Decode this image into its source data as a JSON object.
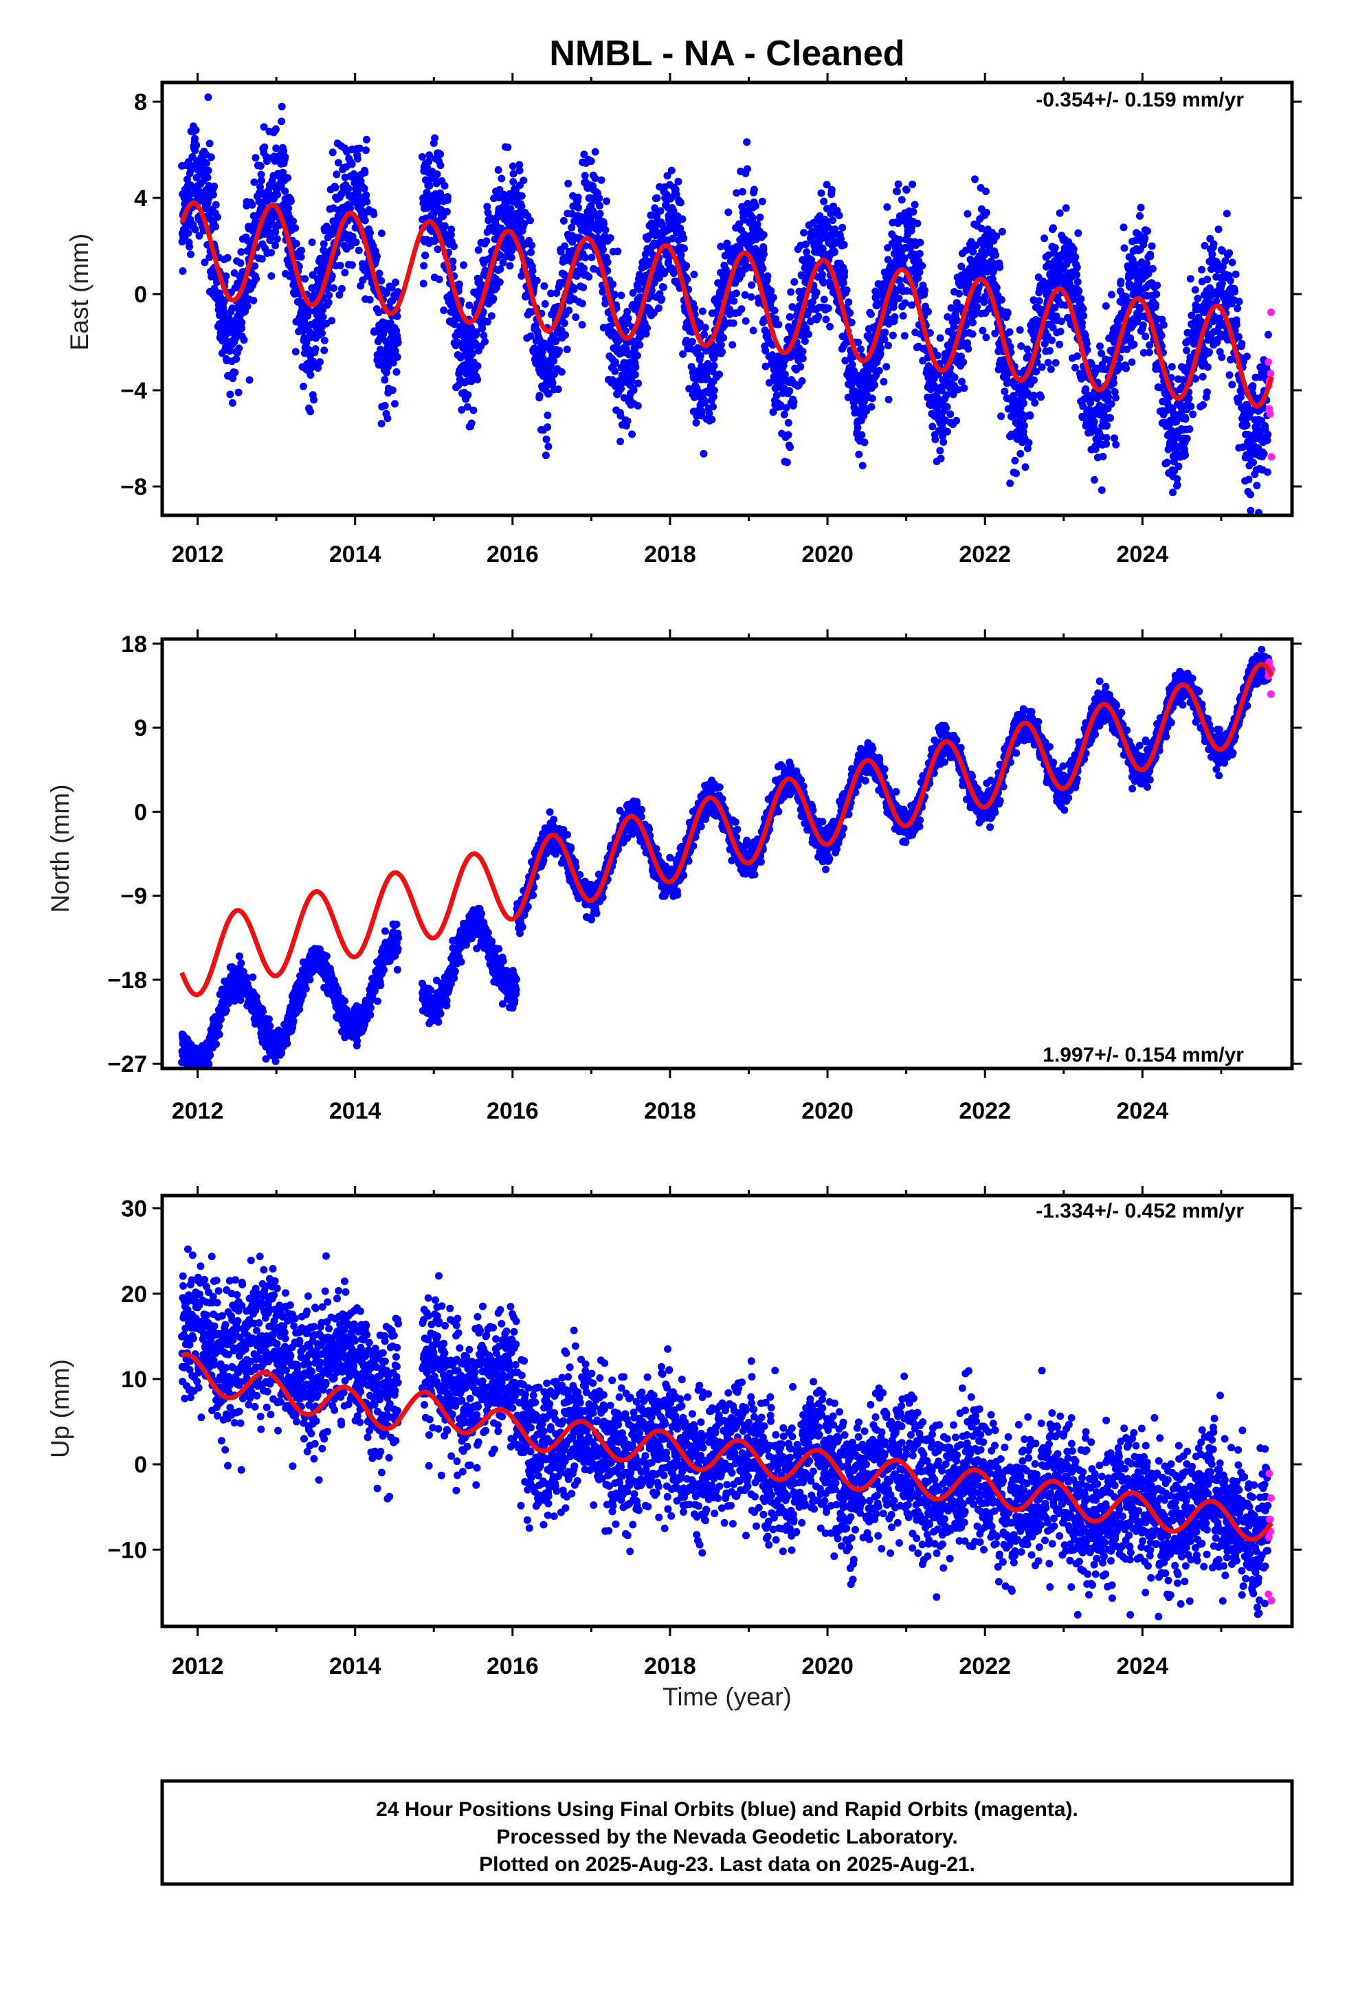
{
  "colors": {
    "final_orbits": "#0000ff",
    "rapid_orbits": "#ff22ee",
    "model": "#ee1111",
    "frame": "#000000"
  },
  "chart_data": {
    "type": "scatter",
    "title": "NMBL  - NA - Cleaned",
    "xlabel": "Time (year)",
    "xlim": [
      2011.55,
      2025.9
    ],
    "xticks": [
      "2012",
      "2014",
      "2016",
      "2018",
      "2020",
      "2022",
      "2024"
    ],
    "x_range_data": [
      2011.8,
      2025.64
    ],
    "rapid_orbits_start": 2025.45,
    "panels": [
      {
        "id": "east",
        "ylabel": "East (mm)",
        "ylim": [
          -9.2,
          8.8
        ],
        "yticks": [
          "−8",
          "−4",
          "0",
          "4",
          "8"
        ],
        "rate_text": "-0.354+/- 0.159 mm/yr",
        "rate_position": "top-right",
        "annual_amplitude": 2.0,
        "seasonal_amplitude_approx": 2.5,
        "model_knots": [
          [
            2011.8,
            1.8
          ],
          [
            2013.0,
            1.7
          ],
          [
            2015.0,
            1.0
          ],
          [
            2016.0,
            0.6
          ],
          [
            2018.0,
            0.0
          ],
          [
            2020.0,
            -0.6
          ],
          [
            2022.0,
            -1.4
          ],
          [
            2024.0,
            -2.2
          ],
          [
            2025.6,
            -2.7
          ]
        ],
        "noise_sd": 1.3
      },
      {
        "id": "north",
        "ylabel": "North (mm)",
        "ylim": [
          -27.5,
          18.5
        ],
        "yticks": [
          "−27",
          "−18",
          "−9",
          "0",
          "9",
          "18"
        ],
        "rate_text": "1.997+/- 0.154 mm/yr",
        "rate_position": "bottom-right",
        "annual_amplitude": 4.0,
        "model_knots": [
          [
            2011.8,
            -16.0
          ],
          [
            2016.0,
            -7.5
          ],
          [
            2020.0,
            0.5
          ],
          [
            2024.0,
            8.5
          ],
          [
            2025.6,
            12.0
          ]
        ],
        "data_offset_before_2016": -7.5,
        "noise_sd": 0.9
      },
      {
        "id": "up",
        "ylabel": "Up (mm)",
        "ylim": [
          -19.0,
          31.5
        ],
        "yticks": [
          "−10",
          "0",
          "10",
          "20",
          "30"
        ],
        "rate_text": "-1.334+/- 0.452 mm/yr",
        "rate_position": "top-right",
        "annual_amplitude": 2.2,
        "model_knots": [
          [
            2011.8,
            11.0
          ],
          [
            2013.0,
            8.5
          ],
          [
            2014.5,
            6.0
          ],
          [
            2014.9,
            6.5
          ],
          [
            2015.5,
            5.5
          ],
          [
            2016.0,
            4.0
          ],
          [
            2018.0,
            1.8
          ],
          [
            2020.0,
            -0.5
          ],
          [
            2022.0,
            -2.8
          ],
          [
            2024.0,
            -5.5
          ],
          [
            2025.6,
            -7.0
          ]
        ],
        "data_offset_before_2016": 4.0,
        "noise_sd": 4.0
      }
    ],
    "gaps": [
      [
        2014.55,
        2014.85
      ]
    ]
  },
  "footer": {
    "line1": "24 Hour Positions Using Final Orbits (blue) and Rapid Orbits (magenta).",
    "line2": "Processed by the Nevada Geodetic Laboratory.",
    "line3": "Plotted on 2025-Aug-23. Last data on 2025-Aug-21."
  }
}
